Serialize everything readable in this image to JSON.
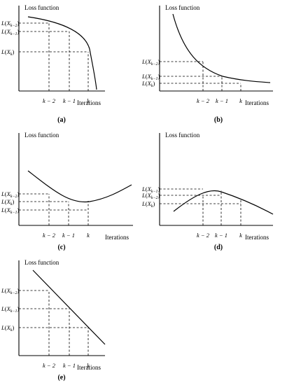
{
  "panels": [
    {
      "id": "a",
      "caption": "(a)",
      "y_title": "Loss function",
      "x_title": "Iterations",
      "x_ticks": [
        "k − 2",
        "k − 1",
        "k"
      ],
      "y_labels": [
        {
          "L": "L",
          "var": "X",
          "sub": "k−2"
        },
        {
          "L": "L",
          "var": "X",
          "sub": "k−1"
        },
        {
          "L": "L",
          "var": "X",
          "sub": "k"
        }
      ],
      "trend": "concave decreasing"
    },
    {
      "id": "b",
      "caption": "(b)",
      "y_title": "Loss function",
      "x_title": "Iterations",
      "x_ticks": [
        "k − 2",
        "k − 1",
        "k"
      ],
      "y_labels": [
        {
          "L": "L",
          "var": "X",
          "sub": "k−2"
        },
        {
          "L": "L",
          "var": "X",
          "sub": "k−1"
        },
        {
          "L": "L",
          "var": "X",
          "sub": "k"
        }
      ],
      "trend": "convex decreasing"
    },
    {
      "id": "c",
      "caption": "(c)",
      "y_title": "Loss function",
      "x_title": "Iterations",
      "x_ticks": [
        "k − 2",
        "k − 1",
        "k"
      ],
      "y_labels": [
        {
          "L": "L",
          "var": "X",
          "sub": "k−2"
        },
        {
          "L": "L",
          "var": "X",
          "sub": "k"
        },
        {
          "L": "L",
          "var": "X",
          "sub": "k−1"
        }
      ],
      "trend": "minimum"
    },
    {
      "id": "d",
      "caption": "(d)",
      "y_title": "Loss function",
      "x_title": "Iterations",
      "x_ticks": [
        "k − 2",
        "k − 1",
        "k"
      ],
      "y_labels": [
        {
          "L": "L",
          "var": "X",
          "sub": "k−1"
        },
        {
          "L": "L",
          "var": "X",
          "sub": "k−2"
        },
        {
          "L": "L",
          "var": "X",
          "sub": "k"
        }
      ],
      "trend": "maximum"
    },
    {
      "id": "e",
      "caption": "(e)",
      "y_title": "Loss function",
      "x_title": "Iterations",
      "x_ticks": [
        "k − 2",
        "k − 1",
        "k"
      ],
      "y_labels": [
        {
          "L": "L",
          "var": "X",
          "sub": "k−2"
        },
        {
          "L": "L",
          "var": "X",
          "sub": "k−1"
        },
        {
          "L": "L",
          "var": "X",
          "sub": "k"
        }
      ],
      "trend": "linear decreasing"
    }
  ]
}
